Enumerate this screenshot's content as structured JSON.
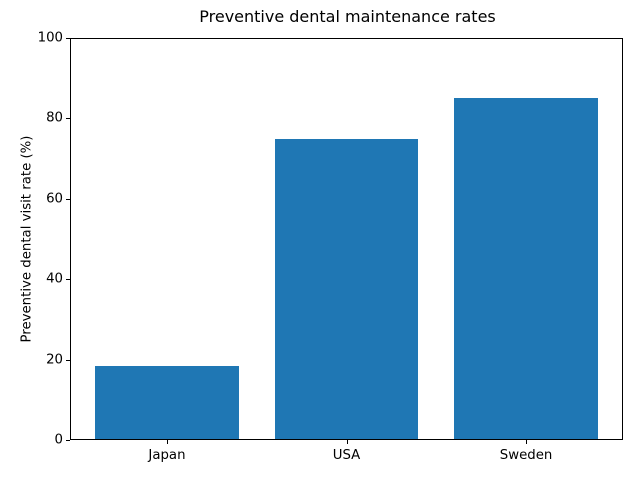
{
  "chart_data": {
    "type": "bar",
    "title": "Preventive dental maintenance rates",
    "xlabel": "",
    "ylabel": "Preventive dental visit rate (%)",
    "categories": [
      "Japan",
      "USA",
      "Sweden"
    ],
    "values": [
      18.5,
      75,
      85
    ],
    "ylim": [
      0,
      100
    ],
    "yticks": [
      0,
      20,
      40,
      60,
      80,
      100
    ],
    "bar_color": "#1f77b4",
    "axis_color": "#000000",
    "background_color": "#ffffff",
    "grid": false,
    "legend": "none"
  }
}
